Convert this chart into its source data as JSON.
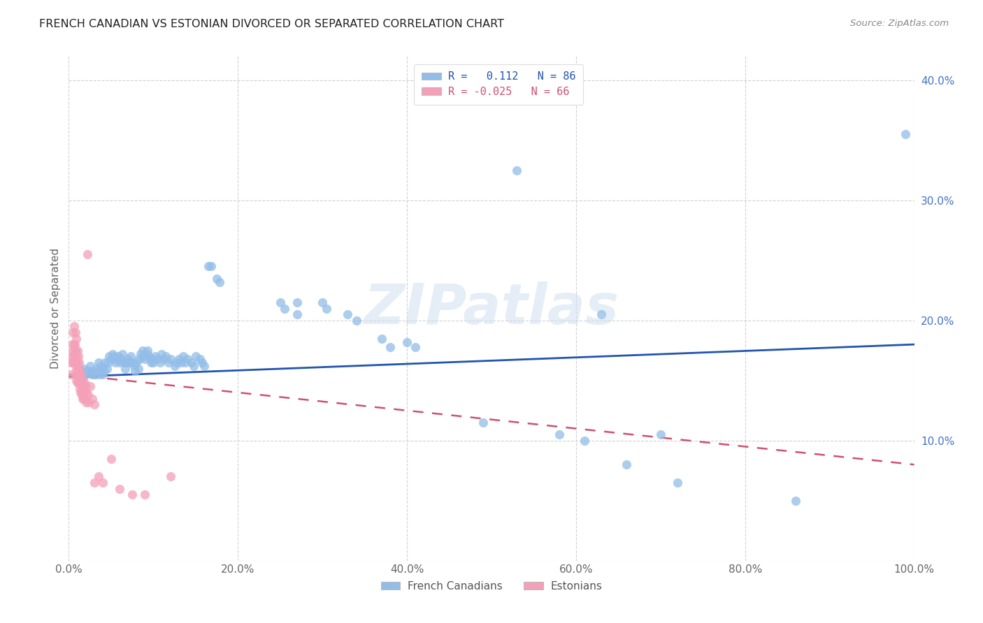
{
  "title": "FRENCH CANADIAN VS ESTONIAN DIVORCED OR SEPARATED CORRELATION CHART",
  "source": "Source: ZipAtlas.com",
  "ylabel": "Divorced or Separated",
  "xlim": [
    0,
    1.0
  ],
  "ylim": [
    0,
    0.42
  ],
  "xticks": [
    0.0,
    0.2,
    0.4,
    0.6,
    0.8,
    1.0
  ],
  "xticklabels": [
    "0.0%",
    "20.0%",
    "40.0%",
    "60.0%",
    "80.0%",
    "100.0%"
  ],
  "yticks": [
    0.0,
    0.1,
    0.2,
    0.3,
    0.4
  ],
  "yticklabels": [
    "",
    "10.0%",
    "20.0%",
    "30.0%",
    "40.0%"
  ],
  "blue_color": "#92BDE8",
  "pink_color": "#F4A0B8",
  "blue_line_color": "#2255B0",
  "pink_line_color": "#D05070",
  "watermark": "ZIPatlas",
  "french_canadians": [
    [
      0.01,
      0.155
    ],
    [
      0.012,
      0.16
    ],
    [
      0.015,
      0.158
    ],
    [
      0.017,
      0.153
    ],
    [
      0.018,
      0.16
    ],
    [
      0.02,
      0.155
    ],
    [
      0.022,
      0.158
    ],
    [
      0.025,
      0.162
    ],
    [
      0.027,
      0.155
    ],
    [
      0.028,
      0.158
    ],
    [
      0.03,
      0.155
    ],
    [
      0.032,
      0.155
    ],
    [
      0.033,
      0.16
    ],
    [
      0.035,
      0.158
    ],
    [
      0.035,
      0.165
    ],
    [
      0.037,
      0.155
    ],
    [
      0.038,
      0.162
    ],
    [
      0.04,
      0.16
    ],
    [
      0.04,
      0.155
    ],
    [
      0.042,
      0.158
    ],
    [
      0.043,
      0.165
    ],
    [
      0.045,
      0.16
    ],
    [
      0.047,
      0.165
    ],
    [
      0.048,
      0.17
    ],
    [
      0.05,
      0.168
    ],
    [
      0.052,
      0.172
    ],
    [
      0.053,
      0.17
    ],
    [
      0.055,
      0.165
    ],
    [
      0.057,
      0.168
    ],
    [
      0.058,
      0.17
    ],
    [
      0.06,
      0.165
    ],
    [
      0.062,
      0.168
    ],
    [
      0.063,
      0.172
    ],
    [
      0.065,
      0.165
    ],
    [
      0.067,
      0.16
    ],
    [
      0.068,
      0.165
    ],
    [
      0.07,
      0.168
    ],
    [
      0.072,
      0.165
    ],
    [
      0.073,
      0.17
    ],
    [
      0.075,
      0.165
    ],
    [
      0.077,
      0.162
    ],
    [
      0.078,
      0.158
    ],
    [
      0.08,
      0.165
    ],
    [
      0.082,
      0.16
    ],
    [
      0.083,
      0.168
    ],
    [
      0.085,
      0.172
    ],
    [
      0.087,
      0.175
    ],
    [
      0.088,
      0.17
    ],
    [
      0.09,
      0.168
    ],
    [
      0.092,
      0.172
    ],
    [
      0.093,
      0.175
    ],
    [
      0.095,
      0.17
    ],
    [
      0.097,
      0.165
    ],
    [
      0.098,
      0.168
    ],
    [
      0.1,
      0.165
    ],
    [
      0.102,
      0.17
    ],
    [
      0.105,
      0.168
    ],
    [
      0.108,
      0.165
    ],
    [
      0.11,
      0.172
    ],
    [
      0.112,
      0.168
    ],
    [
      0.115,
      0.17
    ],
    [
      0.118,
      0.165
    ],
    [
      0.12,
      0.168
    ],
    [
      0.125,
      0.162
    ],
    [
      0.128,
      0.165
    ],
    [
      0.13,
      0.168
    ],
    [
      0.133,
      0.165
    ],
    [
      0.135,
      0.17
    ],
    [
      0.138,
      0.165
    ],
    [
      0.14,
      0.168
    ],
    [
      0.145,
      0.165
    ],
    [
      0.148,
      0.162
    ],
    [
      0.15,
      0.17
    ],
    [
      0.155,
      0.168
    ],
    [
      0.158,
      0.165
    ],
    [
      0.16,
      0.162
    ],
    [
      0.165,
      0.245
    ],
    [
      0.168,
      0.245
    ],
    [
      0.175,
      0.235
    ],
    [
      0.178,
      0.232
    ],
    [
      0.25,
      0.215
    ],
    [
      0.255,
      0.21
    ],
    [
      0.27,
      0.215
    ],
    [
      0.27,
      0.205
    ],
    [
      0.3,
      0.215
    ],
    [
      0.305,
      0.21
    ],
    [
      0.33,
      0.205
    ],
    [
      0.34,
      0.2
    ],
    [
      0.37,
      0.185
    ],
    [
      0.38,
      0.178
    ],
    [
      0.4,
      0.182
    ],
    [
      0.41,
      0.178
    ],
    [
      0.49,
      0.115
    ],
    [
      0.53,
      0.325
    ],
    [
      0.58,
      0.105
    ],
    [
      0.61,
      0.1
    ],
    [
      0.63,
      0.205
    ],
    [
      0.66,
      0.08
    ],
    [
      0.7,
      0.105
    ],
    [
      0.72,
      0.065
    ],
    [
      0.86,
      0.05
    ],
    [
      0.99,
      0.355
    ]
  ],
  "estonians": [
    [
      0.003,
      0.155
    ],
    [
      0.003,
      0.165
    ],
    [
      0.004,
      0.17
    ],
    [
      0.004,
      0.18
    ],
    [
      0.005,
      0.19
    ],
    [
      0.005,
      0.175
    ],
    [
      0.005,
      0.165
    ],
    [
      0.006,
      0.18
    ],
    [
      0.006,
      0.195
    ],
    [
      0.006,
      0.17
    ],
    [
      0.007,
      0.175
    ],
    [
      0.007,
      0.165
    ],
    [
      0.007,
      0.18
    ],
    [
      0.008,
      0.19
    ],
    [
      0.008,
      0.175
    ],
    [
      0.008,
      0.165
    ],
    [
      0.008,
      0.155
    ],
    [
      0.009,
      0.185
    ],
    [
      0.009,
      0.17
    ],
    [
      0.009,
      0.16
    ],
    [
      0.009,
      0.15
    ],
    [
      0.01,
      0.175
    ],
    [
      0.01,
      0.165
    ],
    [
      0.01,
      0.155
    ],
    [
      0.01,
      0.148
    ],
    [
      0.01,
      0.16
    ],
    [
      0.011,
      0.17
    ],
    [
      0.011,
      0.16
    ],
    [
      0.011,
      0.15
    ],
    [
      0.012,
      0.165
    ],
    [
      0.012,
      0.155
    ],
    [
      0.012,
      0.148
    ],
    [
      0.013,
      0.158
    ],
    [
      0.013,
      0.15
    ],
    [
      0.013,
      0.143
    ],
    [
      0.014,
      0.155
    ],
    [
      0.014,
      0.148
    ],
    [
      0.014,
      0.14
    ],
    [
      0.015,
      0.152
    ],
    [
      0.015,
      0.145
    ],
    [
      0.015,
      0.138
    ],
    [
      0.016,
      0.148
    ],
    [
      0.016,
      0.142
    ],
    [
      0.016,
      0.135
    ],
    [
      0.017,
      0.145
    ],
    [
      0.017,
      0.138
    ],
    [
      0.018,
      0.142
    ],
    [
      0.018,
      0.135
    ],
    [
      0.019,
      0.148
    ],
    [
      0.02,
      0.145
    ],
    [
      0.02,
      0.14
    ],
    [
      0.02,
      0.132
    ],
    [
      0.022,
      0.255
    ],
    [
      0.023,
      0.138
    ],
    [
      0.024,
      0.132
    ],
    [
      0.025,
      0.145
    ],
    [
      0.028,
      0.135
    ],
    [
      0.03,
      0.13
    ],
    [
      0.03,
      0.065
    ],
    [
      0.035,
      0.07
    ],
    [
      0.04,
      0.065
    ],
    [
      0.05,
      0.085
    ],
    [
      0.06,
      0.06
    ],
    [
      0.075,
      0.055
    ],
    [
      0.09,
      0.055
    ],
    [
      0.12,
      0.07
    ]
  ]
}
